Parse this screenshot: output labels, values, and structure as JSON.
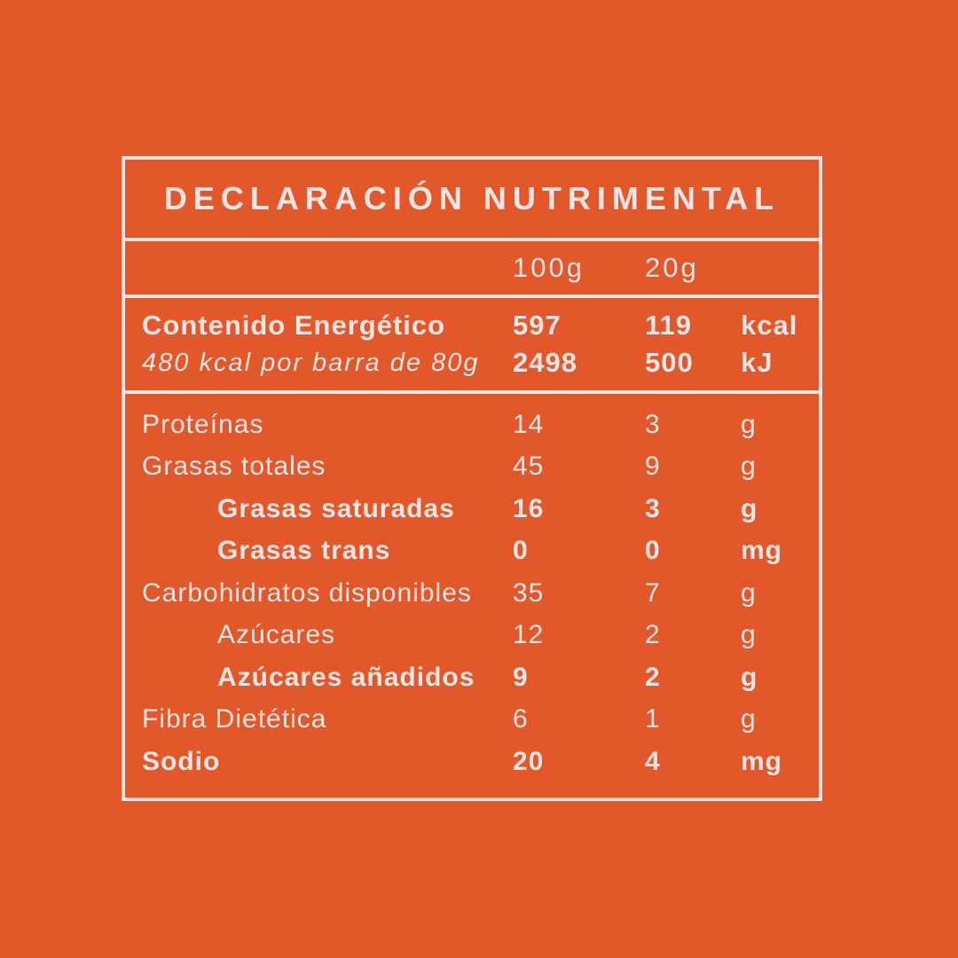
{
  "colors": {
    "background": "#E2582B",
    "ink": "#F2E5E3"
  },
  "label": {
    "title": "DECLARACIÓN NUTRIMENTAL",
    "header": {
      "col_100g": "100g",
      "col_20g": "20g"
    },
    "energy": {
      "name": "Contenido Energético",
      "note": "480 kcal por barra de 80g",
      "kcal": {
        "v100": "597",
        "v20": "119",
        "unit": "kcal"
      },
      "kj": {
        "v100": "2498",
        "v20": "500",
        "unit": "kJ"
      }
    },
    "nutrients": [
      {
        "name": "Proteínas",
        "v100": "14",
        "v20": "3",
        "unit": "g"
      },
      {
        "name": "Grasas totales",
        "v100": "45",
        "v20": "9",
        "unit": "g"
      },
      {
        "name": "Grasas saturadas",
        "v100": "16",
        "v20": "3",
        "unit": "g"
      },
      {
        "name": "Grasas trans",
        "v100": "0",
        "v20": "0",
        "unit": "mg"
      },
      {
        "name": "Carbohidratos disponibles",
        "v100": "35",
        "v20": "7",
        "unit": "g"
      },
      {
        "name": "Azúcares",
        "v100": "12",
        "v20": "2",
        "unit": "g"
      },
      {
        "name": "Azúcares añadidos",
        "v100": "9",
        "v20": "2",
        "unit": "g"
      },
      {
        "name": "Fibra Dietética",
        "v100": "6",
        "v20": "1",
        "unit": "g"
      },
      {
        "name": "Sodio",
        "v100": "20",
        "v20": "4",
        "unit": "mg"
      }
    ]
  }
}
